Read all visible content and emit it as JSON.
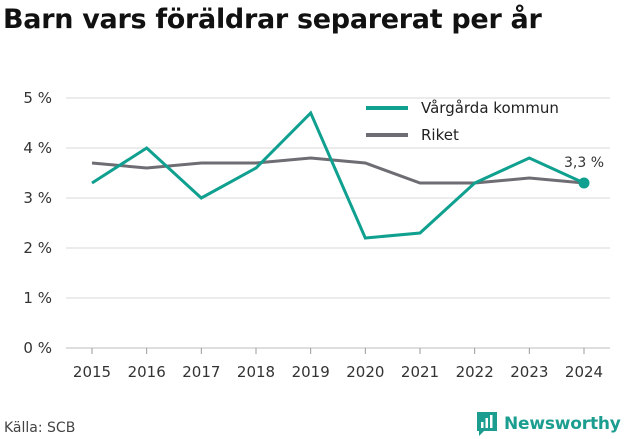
{
  "title": "Barn vars föräldrar separerat per år",
  "source": "Källa: SCB",
  "brand": "Newsworthy",
  "colors": {
    "accent": "#0fa08f",
    "secondary": "#6e6d73",
    "grid": "#d9d9d9"
  },
  "chart_data": {
    "type": "line",
    "x": [
      2015,
      2016,
      2017,
      2018,
      2019,
      2020,
      2021,
      2022,
      2023,
      2024
    ],
    "series": [
      {
        "name": "Vårgårda kommun",
        "values": [
          3.3,
          4.0,
          3.0,
          3.6,
          4.7,
          2.2,
          2.3,
          3.3,
          3.8,
          3.3
        ],
        "color": "#0fa08f"
      },
      {
        "name": "Riket",
        "values": [
          3.7,
          3.6,
          3.7,
          3.7,
          3.8,
          3.7,
          3.3,
          3.3,
          3.4,
          3.3
        ],
        "color": "#6e6d73"
      }
    ],
    "yticks": [
      "0 %",
      "1 %",
      "2 %",
      "3 %",
      "4 %",
      "5 %"
    ],
    "ylim": [
      0,
      5
    ],
    "end_label": "3,3 %",
    "legend_position": "top-right",
    "grid": true
  }
}
